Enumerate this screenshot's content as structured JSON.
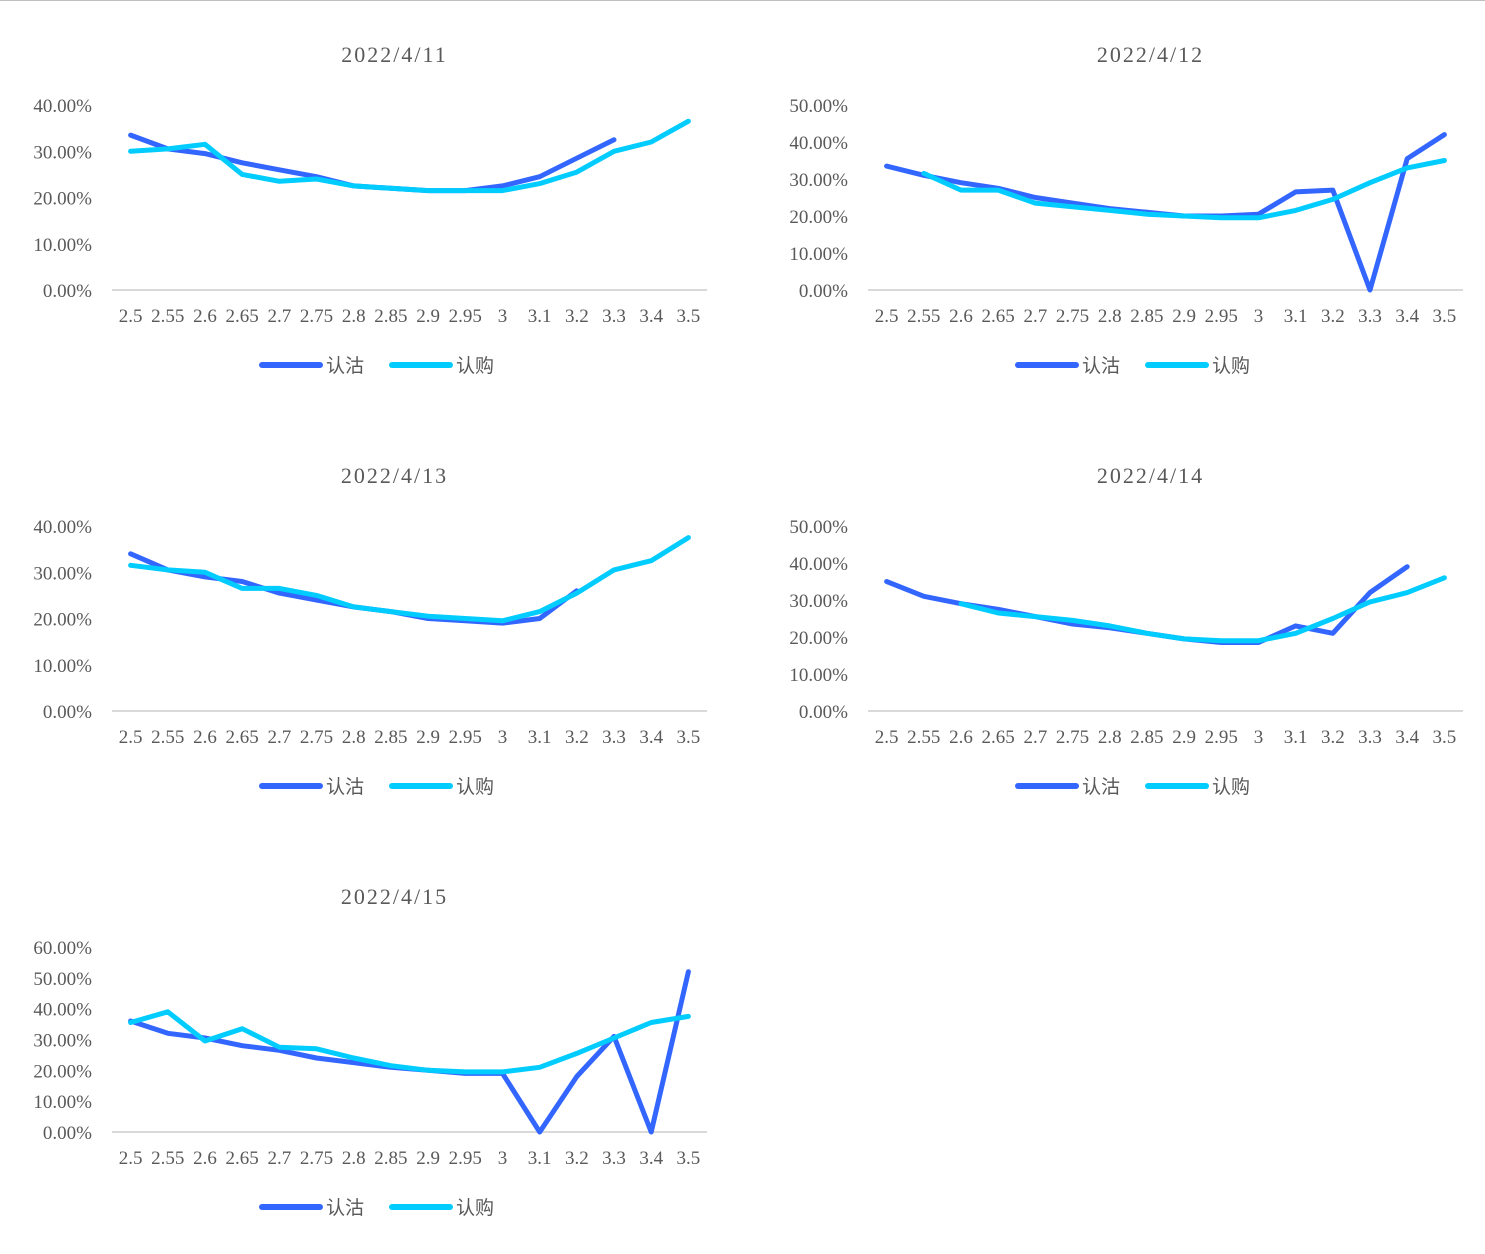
{
  "colors": {
    "put": "#3366ff",
    "call": "#00ccff",
    "axis": "#d9d9d9",
    "text": "#595959"
  },
  "chart_data": [
    {
      "type": "line",
      "title": "2022/4/11",
      "categories": [
        "2.5",
        "2.55",
        "2.6",
        "2.65",
        "2.7",
        "2.75",
        "2.8",
        "2.85",
        "2.9",
        "2.95",
        "3",
        "3.1",
        "3.2",
        "3.3",
        "3.4",
        "3.5"
      ],
      "y_ticks": [
        "0.00%",
        "10.00%",
        "20.00%",
        "30.00%",
        "40.00%"
      ],
      "ylim": [
        0,
        40
      ],
      "series": [
        {
          "name": "认沽",
          "values": [
            33.5,
            30.5,
            29.5,
            27.5,
            26,
            24.5,
            22.5,
            22,
            21.5,
            21.5,
            22.5,
            24.5,
            28.5,
            32.5,
            null,
            null
          ]
        },
        {
          "name": "认购",
          "values": [
            30,
            30.5,
            31.5,
            25,
            23.5,
            24,
            22.5,
            22,
            21.5,
            21.5,
            21.5,
            23,
            25.5,
            30,
            32,
            36.5
          ]
        }
      ],
      "legend": "bottom"
    },
    {
      "type": "line",
      "title": "2022/4/12",
      "categories": [
        "2.5",
        "2.55",
        "2.6",
        "2.65",
        "2.7",
        "2.75",
        "2.8",
        "2.85",
        "2.9",
        "2.95",
        "3",
        "3.1",
        "3.2",
        "3.3",
        "3.4",
        "3.5"
      ],
      "y_ticks": [
        "0.00%",
        "10.00%",
        "20.00%",
        "30.00%",
        "40.00%",
        "50.00%"
      ],
      "ylim": [
        0,
        50
      ],
      "series": [
        {
          "name": "认沽",
          "values": [
            33.5,
            31,
            29,
            27.5,
            25,
            23.5,
            22,
            21,
            20,
            20,
            20.5,
            26.5,
            27,
            0,
            35.5,
            42
          ]
        },
        {
          "name": "认购",
          "values": [
            null,
            31.5,
            27,
            27,
            23.5,
            22.5,
            21.5,
            20.5,
            20,
            19.5,
            19.5,
            21.5,
            24.5,
            29,
            33,
            35
          ]
        }
      ],
      "legend": "bottom"
    },
    {
      "type": "line",
      "title": "2022/4/13",
      "categories": [
        "2.5",
        "2.55",
        "2.6",
        "2.65",
        "2.7",
        "2.75",
        "2.8",
        "2.85",
        "2.9",
        "2.95",
        "3",
        "3.1",
        "3.2",
        "3.3",
        "3.4",
        "3.5"
      ],
      "y_ticks": [
        "0.00%",
        "10.00%",
        "20.00%",
        "30.00%",
        "40.00%"
      ],
      "ylim": [
        0,
        40
      ],
      "series": [
        {
          "name": "认沽",
          "values": [
            34,
            30.5,
            29,
            28,
            25.5,
            24,
            22.5,
            21.5,
            20,
            19.5,
            19,
            20,
            26,
            null,
            null,
            null
          ]
        },
        {
          "name": "认购",
          "values": [
            31.5,
            30.5,
            30,
            26.5,
            26.5,
            25,
            22.5,
            21.5,
            20.5,
            20,
            19.5,
            21.5,
            25.5,
            30.5,
            32.5,
            37.5
          ]
        }
      ],
      "legend": "bottom"
    },
    {
      "type": "line",
      "title": "2022/4/14",
      "categories": [
        "2.5",
        "2.55",
        "2.6",
        "2.65",
        "2.7",
        "2.75",
        "2.8",
        "2.85",
        "2.9",
        "2.95",
        "3",
        "3.1",
        "3.2",
        "3.3",
        "3.4",
        "3.5"
      ],
      "y_ticks": [
        "0.00%",
        "10.00%",
        "20.00%",
        "30.00%",
        "40.00%",
        "50.00%"
      ],
      "ylim": [
        0,
        50
      ],
      "series": [
        {
          "name": "认沽",
          "values": [
            35,
            31,
            29,
            27.5,
            25.5,
            23.5,
            22.5,
            21,
            19.5,
            18.5,
            18.5,
            23,
            21,
            32,
            39,
            null
          ]
        },
        {
          "name": "认购",
          "values": [
            null,
            null,
            29,
            26.5,
            25.5,
            24.5,
            23,
            21,
            19.5,
            19,
            19,
            21,
            25,
            29.5,
            32,
            36
          ]
        }
      ],
      "legend": "bottom"
    },
    {
      "type": "line",
      "title": "2022/4/15",
      "categories": [
        "2.5",
        "2.55",
        "2.6",
        "2.65",
        "2.7",
        "2.75",
        "2.8",
        "2.85",
        "2.9",
        "2.95",
        "3",
        "3.1",
        "3.2",
        "3.3",
        "3.4",
        "3.5"
      ],
      "y_ticks": [
        "0.00%",
        "10.00%",
        "20.00%",
        "30.00%",
        "40.00%",
        "50.00%",
        "60.00%"
      ],
      "ylim": [
        0,
        60
      ],
      "series": [
        {
          "name": "认沽",
          "values": [
            36,
            32,
            30.5,
            28,
            26.5,
            24,
            22.5,
            21,
            20,
            19,
            19,
            0,
            18,
            31,
            0,
            52
          ]
        },
        {
          "name": "认购",
          "values": [
            35.5,
            39,
            29.5,
            33.5,
            27.5,
            27,
            24,
            21.5,
            20,
            19.5,
            19.5,
            21,
            25.5,
            30.5,
            35.5,
            37.5
          ]
        }
      ],
      "legend": "bottom"
    }
  ]
}
